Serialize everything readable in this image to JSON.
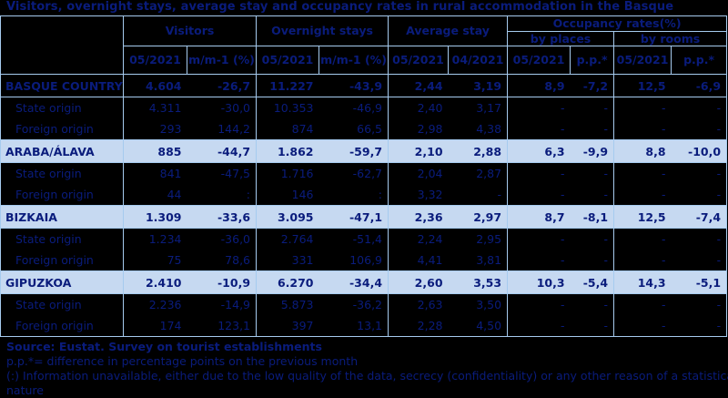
{
  "title": "Visitors, overnight stays, average stay and occupancy rates in rural accommodation in the Basque",
  "colors": {
    "background": "#000000",
    "text_navy": "#0a1c7c",
    "border_light_blue": "#a6cbef",
    "highlight_row": "#c6d9f1"
  },
  "chart_data": {
    "type": "table",
    "title": "Visitors, overnight stays, average stay and occupancy rates in rural accommodation in the Basque",
    "column_groups": [
      {
        "label": "Visitors",
        "columns": [
          "05/2021",
          "m/m-1 (%)"
        ]
      },
      {
        "label": "Overnight stays",
        "columns": [
          "05/2021",
          "m/m-1 (%)"
        ]
      },
      {
        "label": "Average stay",
        "columns": [
          "05/2021",
          "04/2021"
        ]
      },
      {
        "label": "Occupancy rates(%)",
        "subgroups": [
          {
            "label": "by places",
            "columns": [
              "05/2021",
              "p.p.*"
            ]
          },
          {
            "label": "by rooms",
            "columns": [
              "05/2021",
              "p.p.*"
            ]
          }
        ]
      }
    ],
    "flat_columns": [
      "05/2021",
      "m/m-1 (%)",
      "05/2021",
      "m/m-1 (%)",
      "05/2021",
      "04/2021",
      "05/2021",
      "p.p.*",
      "05/2021",
      "p.p.*"
    ],
    "rows": [
      {
        "label": "BASQUE COUNTRY",
        "style": "total-dark",
        "cells": [
          "4.604",
          "-26,7",
          "11.227",
          "-43,9",
          "2,44",
          "3,19",
          "8,9",
          "-7,2",
          "12,5",
          "-6,9"
        ]
      },
      {
        "label": "State origin",
        "style": "origin",
        "cells": [
          "4.311",
          "-30,0",
          "10.353",
          "-46,9",
          "2,40",
          "3,17",
          "-",
          "-",
          "-",
          "-"
        ]
      },
      {
        "label": "Foreign origin",
        "style": "origin",
        "cells": [
          "293",
          "144,2",
          "874",
          "66,5",
          "2,98",
          "4,38",
          "-",
          "-",
          "-",
          "-"
        ]
      },
      {
        "label": "ARABA/ÁLAVA",
        "style": "total-light",
        "cells": [
          "885",
          "-44,7",
          "1.862",
          "-59,7",
          "2,10",
          "2,88",
          "6,3",
          "-9,9",
          "8,8",
          "-10,0"
        ]
      },
      {
        "label": "State origin",
        "style": "origin",
        "cells": [
          "841",
          "-47,5",
          "1.716",
          "-62,7",
          "2,04",
          "2,87",
          "-",
          "-",
          "-",
          "-"
        ]
      },
      {
        "label": "Foreign origin",
        "style": "origin",
        "cells": [
          "44",
          ":",
          "146",
          ":",
          "3,32",
          "-",
          "-",
          "-",
          "-",
          "-"
        ]
      },
      {
        "label": "BIZKAIA",
        "style": "total-light",
        "cells": [
          "1.309",
          "-33,6",
          "3.095",
          "-47,1",
          "2,36",
          "2,97",
          "8,7",
          "-8,1",
          "12,5",
          "-7,4"
        ]
      },
      {
        "label": "State origin",
        "style": "origin",
        "cells": [
          "1.234",
          "-36,0",
          "2.764",
          "-51,4",
          "2,24",
          "2,95",
          "-",
          "-",
          "-",
          "-"
        ]
      },
      {
        "label": "Foreign origin",
        "style": "origin",
        "cells": [
          "75",
          "78,6",
          "331",
          "106,9",
          "4,41",
          "3,81",
          "-",
          "-",
          "-",
          "-"
        ]
      },
      {
        "label": "GIPUZKOA",
        "style": "total-light",
        "cells": [
          "2.410",
          "-10,9",
          "6.270",
          "-34,4",
          "2,60",
          "3,53",
          "10,3",
          "-5,4",
          "14,3",
          "-5,1"
        ]
      },
      {
        "label": "State origin",
        "style": "origin",
        "cells": [
          "2.236",
          "-14,9",
          "5.873",
          "-36,2",
          "2,63",
          "3,50",
          "-",
          "-",
          "-",
          "-"
        ]
      },
      {
        "label": "Foreign origin",
        "style": "origin",
        "cells": [
          "174",
          "123,1",
          "397",
          "13,1",
          "2,28",
          "4,50",
          "-",
          "-",
          "-",
          "-"
        ]
      }
    ]
  },
  "notes": [
    {
      "text": "Source: Eustat. Survey on tourist establishments",
      "bold": true
    },
    {
      "text": "p.p.*= difference in percentage points on the previous month",
      "bold": false
    },
    {
      "text": "(:) Information unavailable, either due to the low quality of the data, secrecy (confidentiality) or any other reason of a statistical",
      "bold": false
    },
    {
      "text": "nature",
      "bold": false
    }
  ]
}
